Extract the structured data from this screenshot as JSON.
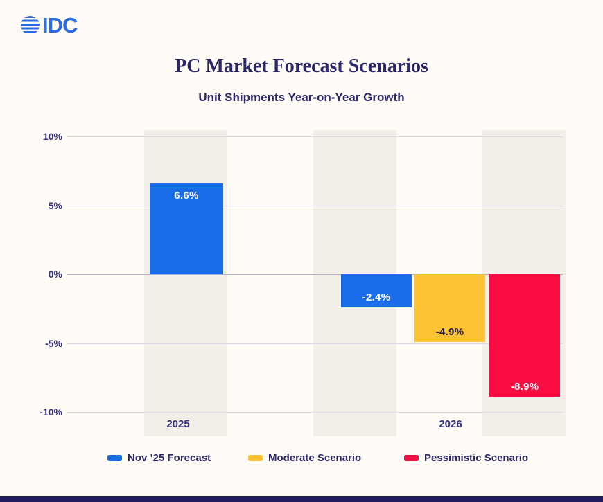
{
  "logo": {
    "text": "IDC"
  },
  "header": {
    "title": "PC Market Forecast Scenarios",
    "subtitle": "Unit Shipments Year-on-Year Growth"
  },
  "chart_data": {
    "type": "bar",
    "title": "PC Market Forecast Scenarios",
    "subtitle": "Unit Shipments Year-on-Year Growth",
    "categories": [
      "2025",
      "2026"
    ],
    "series": [
      {
        "name": "Nov ’25 Forecast",
        "color": "#1b6ce9",
        "values": [
          6.6,
          -2.4
        ]
      },
      {
        "name": "Moderate Scenario",
        "color": "#fcc335",
        "values": [
          null,
          -4.9
        ]
      },
      {
        "name": "Pessimistic Scenario",
        "color": "#f80c42",
        "values": [
          null,
          -8.9
        ]
      }
    ],
    "bars": [
      {
        "category": "2025",
        "series": "Nov ’25 Forecast",
        "value": 6.6,
        "label": "6.6%",
        "color": "#1b6ce9",
        "label_color": "#ffffff"
      },
      {
        "category": "2026",
        "series": "Nov ’25 Forecast",
        "value": -2.4,
        "label": "-2.4%",
        "color": "#1b6ce9",
        "label_color": "#ffffff"
      },
      {
        "category": "2026",
        "series": "Moderate Scenario",
        "value": -4.9,
        "label": "-4.9%",
        "color": "#fcc335",
        "label_color": "#221c50"
      },
      {
        "category": "2026",
        "series": "Pessimistic Scenario",
        "value": -8.9,
        "label": "-8.9%",
        "color": "#f80c42",
        "label_color": "#ffffff"
      }
    ],
    "y_axis": {
      "ticks": [
        {
          "label": "10%",
          "value": 10
        },
        {
          "label": "5%",
          "value": 5
        },
        {
          "label": "0%",
          "value": 0
        },
        {
          "label": "-5%",
          "value": -5
        },
        {
          "label": "-10%",
          "value": -10
        }
      ],
      "ylim": [
        -10,
        10
      ]
    },
    "grid": true,
    "legend_position": "bottom"
  },
  "legend": {
    "items": [
      {
        "label": "Nov ’25 Forecast",
        "color": "#1b6ce9"
      },
      {
        "label": "Moderate Scenario",
        "color": "#fcc335"
      },
      {
        "label": "Pessimistic Scenario",
        "color": "#f80c42"
      }
    ]
  },
  "colors": {
    "background": "#fffbf6",
    "band": "#f3eee8",
    "gridline": "#dcd9e7",
    "zero_line": "#b2afc5",
    "text_navy": "#2b2768",
    "bottom_bar": "#221c5c",
    "logo_blue": "#2a6be4"
  }
}
